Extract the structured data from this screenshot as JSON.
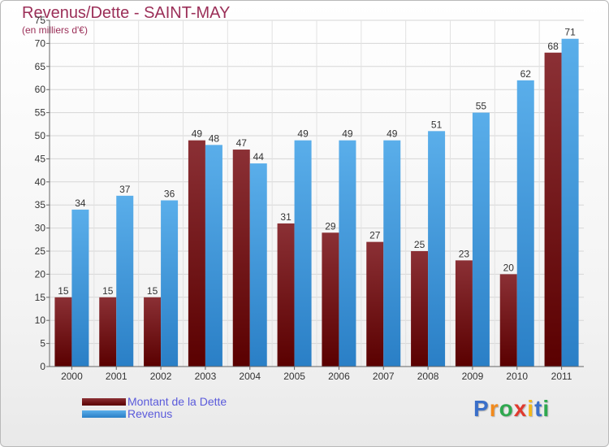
{
  "title": "Revenus/Dette - SAINT-MAY",
  "subtitle": "(en milliers d'€)",
  "colors": {
    "dette_top": "#8b3035",
    "dette_bottom": "#5a0000",
    "revenus_top": "#5aaeea",
    "revenus_bottom": "#2a7fc6",
    "title": "#9b2f58",
    "legend_text": "#5a5adb"
  },
  "chart_data": {
    "type": "bar",
    "title": "Revenus/Dette - SAINT-MAY",
    "subtitle": "(en milliers d'€)",
    "categories": [
      "2000",
      "2001",
      "2002",
      "2003",
      "2004",
      "2005",
      "2006",
      "2007",
      "2008",
      "2009",
      "2010",
      "2011"
    ],
    "series": [
      {
        "name": "Montant de la Dette",
        "values": [
          15,
          15,
          15,
          49,
          47,
          31,
          29,
          27,
          25,
          23,
          20,
          68
        ]
      },
      {
        "name": "Revenus",
        "values": [
          34,
          37,
          36,
          48,
          44,
          49,
          49,
          49,
          51,
          55,
          62,
          71
        ]
      }
    ],
    "ylim": [
      0,
      75
    ],
    "yticks": [
      "0",
      "5",
      "10",
      "15",
      "20",
      "25",
      "30",
      "35",
      "40",
      "45",
      "50",
      "55",
      "60",
      "65",
      "70",
      "75"
    ],
    "grid": true,
    "legend": "bottom-left"
  },
  "legend": {
    "dette_label": "Montant de la Dette",
    "revenus_label": "Revenus"
  },
  "logo": {
    "text": "Proxiti",
    "letters": [
      "P",
      "r",
      "o",
      "x",
      "i",
      "t",
      "i"
    ],
    "letter_colors": [
      "#3a6fc9",
      "#f28a1c",
      "#2fa84f",
      "#e03a2e",
      "#f3b81c",
      "#3a6fc9",
      "#2fa84f"
    ]
  }
}
